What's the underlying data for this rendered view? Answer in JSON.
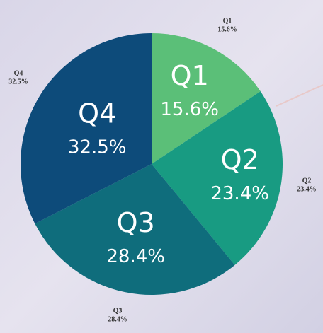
{
  "chart_data": {
    "type": "pie",
    "categories": [
      "Q1",
      "Q2",
      "Q3",
      "Q4"
    ],
    "values": [
      15.6,
      23.4,
      28.4,
      32.5
    ],
    "value_labels": [
      "15.6%",
      "23.4%",
      "28.4%",
      "32.5%"
    ],
    "colors": [
      "#5bbf78",
      "#189b82",
      "#0f6d7c",
      "#0d4b7a"
    ]
  }
}
